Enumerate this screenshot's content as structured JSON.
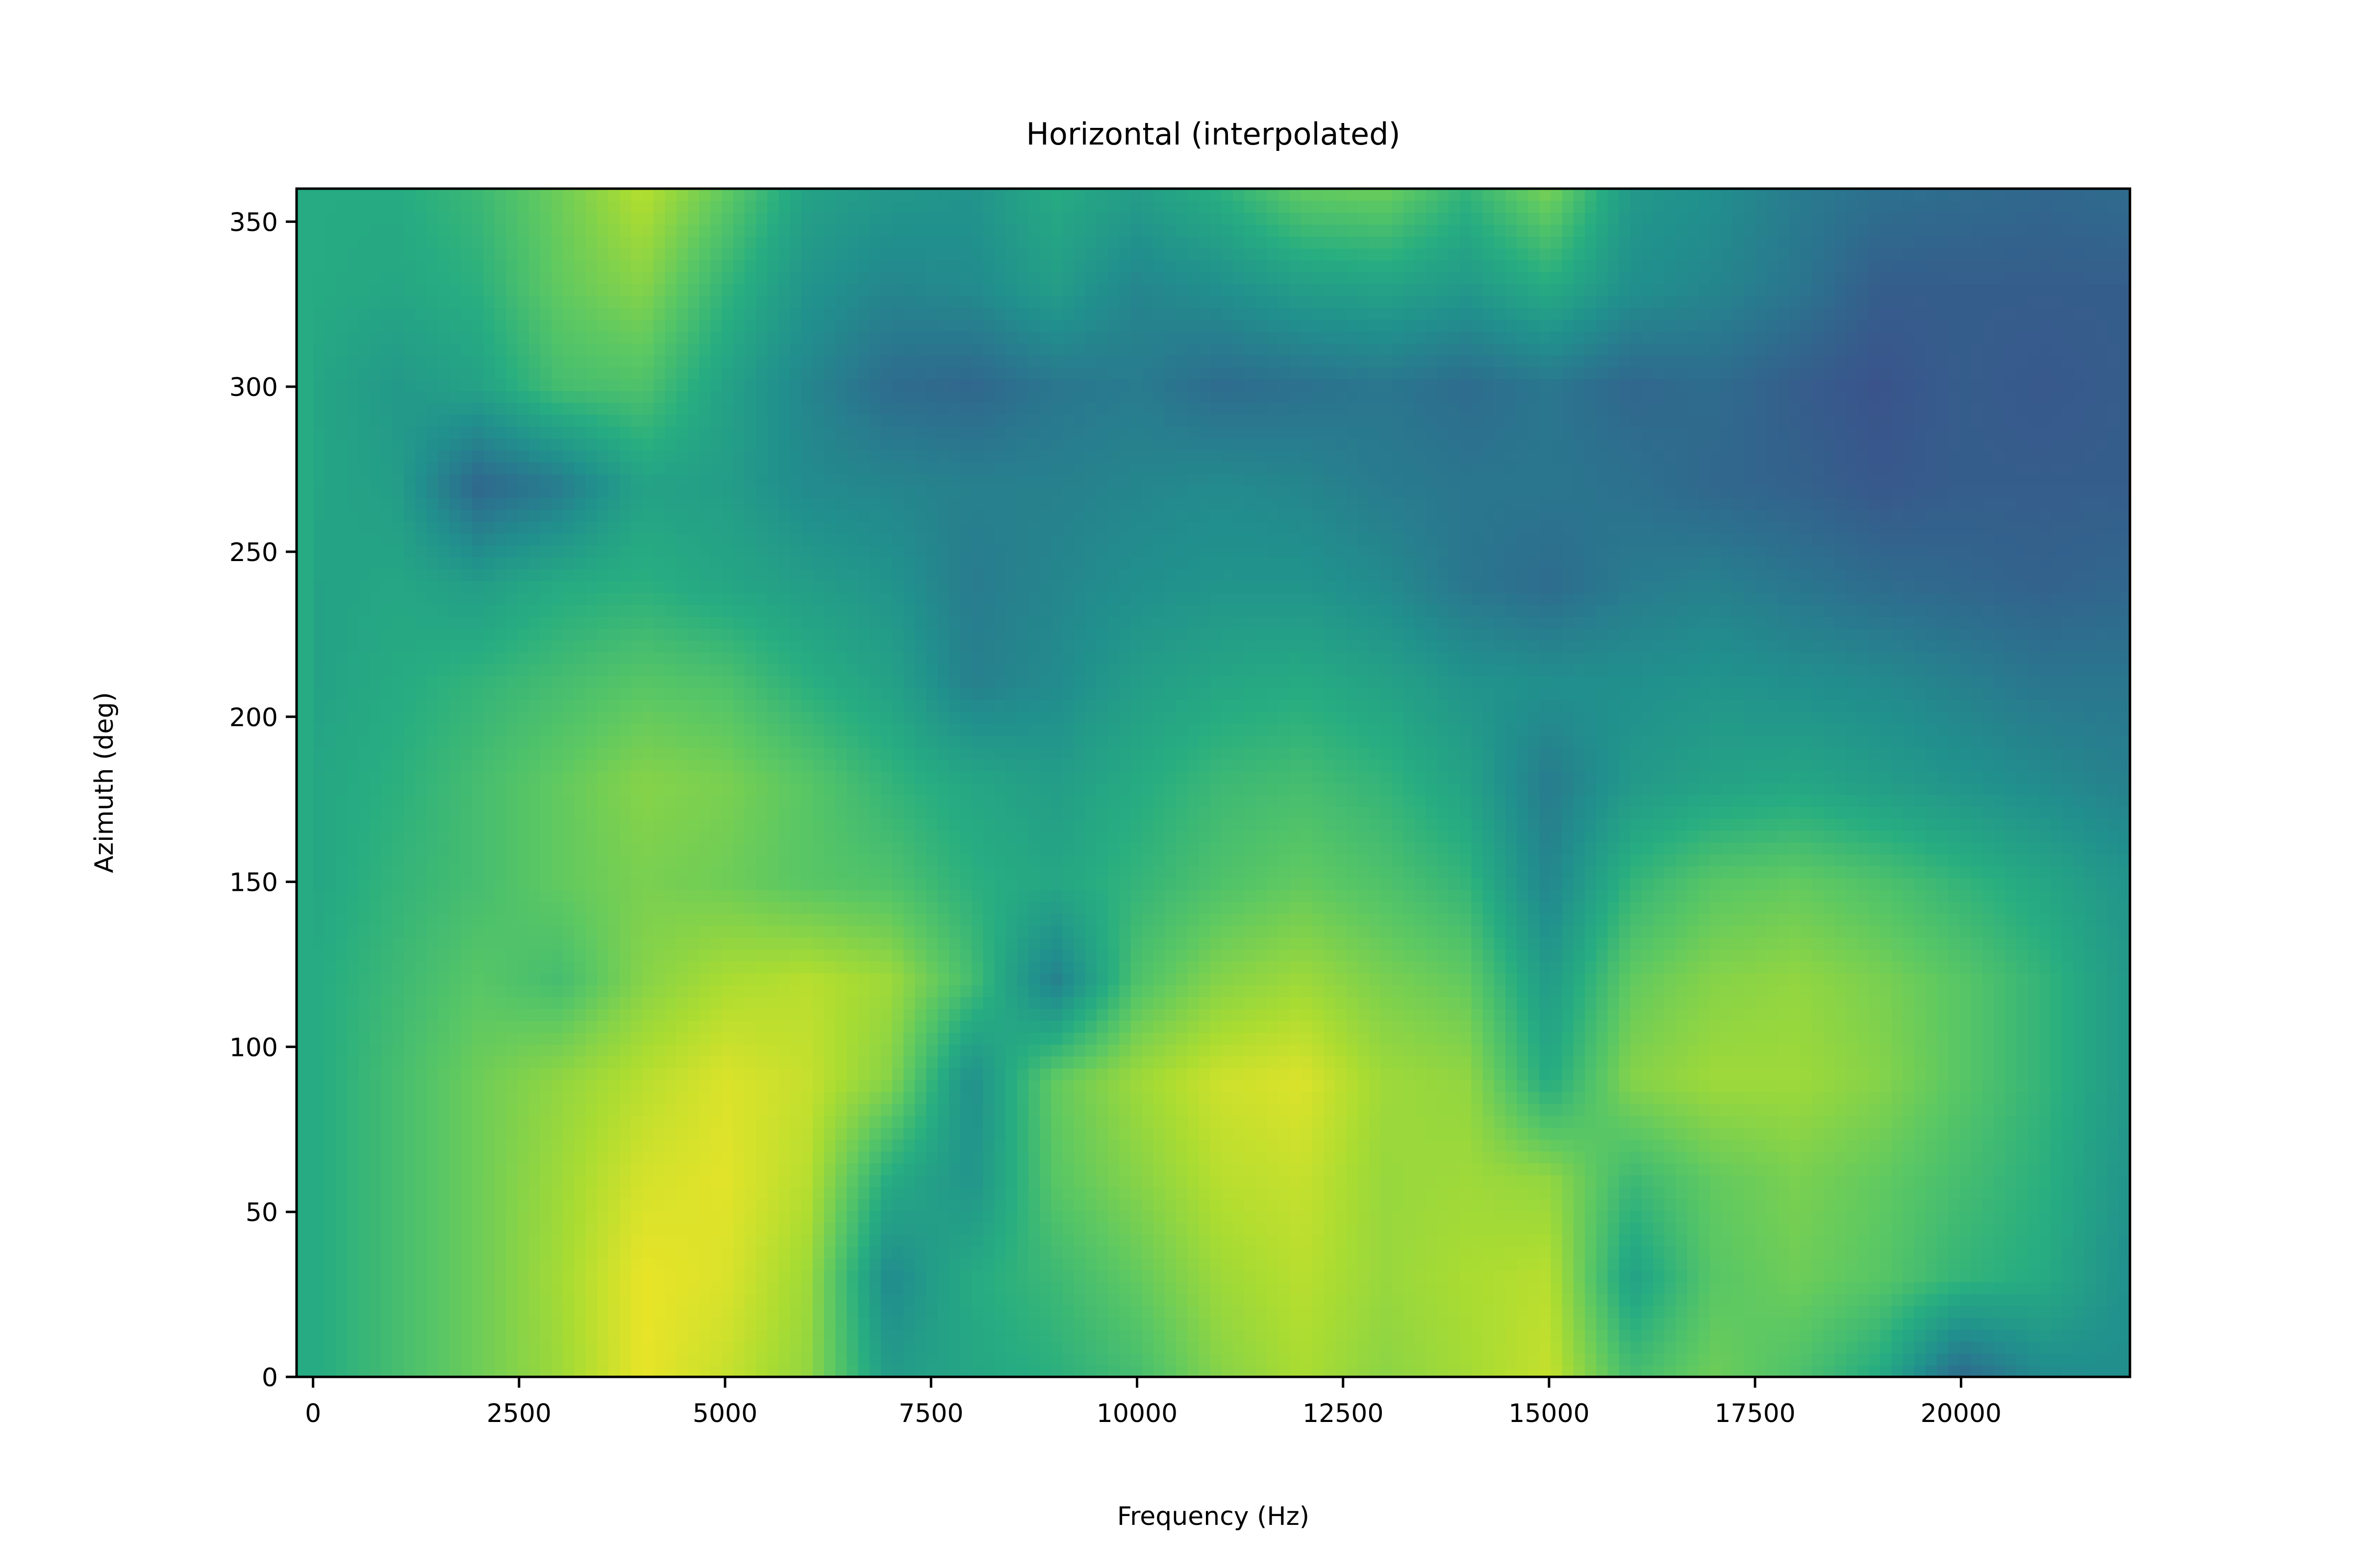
{
  "chart_data": {
    "type": "heatmap",
    "title": "Horizontal (interpolated)",
    "xlabel": "Frequency (Hz)",
    "ylabel": "Azimuth (deg)",
    "xlim": [
      -200,
      22050
    ],
    "ylim": [
      0,
      360
    ],
    "x_ticks": [
      {
        "value": 0,
        "label": "0"
      },
      {
        "value": 2500,
        "label": "2500"
      },
      {
        "value": 5000,
        "label": "5000"
      },
      {
        "value": 7500,
        "label": "7500"
      },
      {
        "value": 10000,
        "label": "10000"
      },
      {
        "value": 12500,
        "label": "12500"
      },
      {
        "value": 15000,
        "label": "15000"
      },
      {
        "value": 17500,
        "label": "17500"
      },
      {
        "value": 20000,
        "label": "20000"
      }
    ],
    "y_ticks": [
      {
        "value": 0,
        "label": "0"
      },
      {
        "value": 50,
        "label": "50"
      },
      {
        "value": 100,
        "label": "100"
      },
      {
        "value": 150,
        "label": "150"
      },
      {
        "value": 200,
        "label": "200"
      },
      {
        "value": 250,
        "label": "250"
      },
      {
        "value": 300,
        "label": "300"
      },
      {
        "value": 350,
        "label": "350"
      }
    ],
    "colormap": "viridis",
    "colorbar": false,
    "grid": false,
    "grid_x_hz": [
      0,
      1000,
      2000,
      3000,
      4000,
      5000,
      6000,
      7000,
      8000,
      9000,
      10000,
      11000,
      12000,
      13000,
      14000,
      15000,
      16000,
      17000,
      18000,
      19000,
      20000,
      21000,
      22050
    ],
    "grid_y_deg": [
      0,
      30,
      60,
      90,
      120,
      150,
      180,
      210,
      240,
      270,
      300,
      330,
      360
    ],
    "intensity": [
      [
        0.62,
        0.7,
        0.78,
        0.86,
        0.97,
        0.92,
        0.84,
        0.55,
        0.6,
        0.64,
        0.7,
        0.82,
        0.88,
        0.83,
        0.87,
        0.92,
        0.7,
        0.78,
        0.72,
        0.62,
        0.35,
        0.48,
        0.5
      ],
      [
        0.62,
        0.7,
        0.78,
        0.87,
        0.97,
        0.95,
        0.86,
        0.48,
        0.62,
        0.68,
        0.76,
        0.86,
        0.9,
        0.85,
        0.88,
        0.9,
        0.58,
        0.74,
        0.78,
        0.74,
        0.66,
        0.62,
        0.5
      ],
      [
        0.62,
        0.7,
        0.78,
        0.86,
        0.94,
        0.96,
        0.9,
        0.62,
        0.52,
        0.74,
        0.82,
        0.9,
        0.92,
        0.85,
        0.86,
        0.84,
        0.68,
        0.76,
        0.8,
        0.76,
        0.7,
        0.64,
        0.52
      ],
      [
        0.62,
        0.7,
        0.78,
        0.84,
        0.9,
        0.95,
        0.92,
        0.82,
        0.5,
        0.76,
        0.86,
        0.93,
        0.95,
        0.86,
        0.84,
        0.62,
        0.82,
        0.86,
        0.86,
        0.82,
        0.74,
        0.66,
        0.54
      ],
      [
        0.62,
        0.68,
        0.74,
        0.7,
        0.82,
        0.88,
        0.9,
        0.86,
        0.7,
        0.44,
        0.72,
        0.82,
        0.86,
        0.8,
        0.76,
        0.55,
        0.76,
        0.82,
        0.84,
        0.8,
        0.74,
        0.66,
        0.54
      ],
      [
        0.6,
        0.66,
        0.7,
        0.76,
        0.8,
        0.78,
        0.74,
        0.72,
        0.64,
        0.6,
        0.66,
        0.72,
        0.76,
        0.72,
        0.66,
        0.46,
        0.66,
        0.74,
        0.76,
        0.72,
        0.66,
        0.6,
        0.52
      ],
      [
        0.6,
        0.64,
        0.7,
        0.76,
        0.82,
        0.8,
        0.74,
        0.66,
        0.6,
        0.56,
        0.62,
        0.68,
        0.7,
        0.66,
        0.58,
        0.42,
        0.54,
        0.58,
        0.6,
        0.56,
        0.52,
        0.48,
        0.44
      ],
      [
        0.58,
        0.62,
        0.66,
        0.7,
        0.74,
        0.72,
        0.64,
        0.58,
        0.44,
        0.48,
        0.56,
        0.6,
        0.62,
        0.58,
        0.52,
        0.5,
        0.5,
        0.52,
        0.5,
        0.48,
        0.44,
        0.4,
        0.4
      ],
      [
        0.58,
        0.6,
        0.56,
        0.62,
        0.64,
        0.6,
        0.56,
        0.52,
        0.42,
        0.46,
        0.5,
        0.52,
        0.52,
        0.48,
        0.4,
        0.36,
        0.42,
        0.44,
        0.4,
        0.36,
        0.34,
        0.32,
        0.34
      ],
      [
        0.6,
        0.56,
        0.34,
        0.42,
        0.58,
        0.56,
        0.48,
        0.46,
        0.44,
        0.44,
        0.46,
        0.48,
        0.46,
        0.42,
        0.4,
        0.4,
        0.38,
        0.34,
        0.32,
        0.28,
        0.3,
        0.3,
        0.3
      ],
      [
        0.6,
        0.54,
        0.58,
        0.7,
        0.72,
        0.58,
        0.46,
        0.36,
        0.34,
        0.4,
        0.42,
        0.36,
        0.38,
        0.4,
        0.36,
        0.4,
        0.34,
        0.36,
        0.3,
        0.26,
        0.3,
        0.28,
        0.3
      ],
      [
        0.62,
        0.6,
        0.64,
        0.76,
        0.82,
        0.66,
        0.52,
        0.46,
        0.48,
        0.56,
        0.46,
        0.5,
        0.56,
        0.58,
        0.54,
        0.62,
        0.5,
        0.46,
        0.4,
        0.3,
        0.3,
        0.3,
        0.3
      ],
      [
        0.62,
        0.62,
        0.68,
        0.78,
        0.9,
        0.76,
        0.58,
        0.54,
        0.52,
        0.62,
        0.56,
        0.64,
        0.76,
        0.78,
        0.66,
        0.8,
        0.54,
        0.5,
        0.42,
        0.38,
        0.36,
        0.34,
        0.36
      ]
    ]
  }
}
